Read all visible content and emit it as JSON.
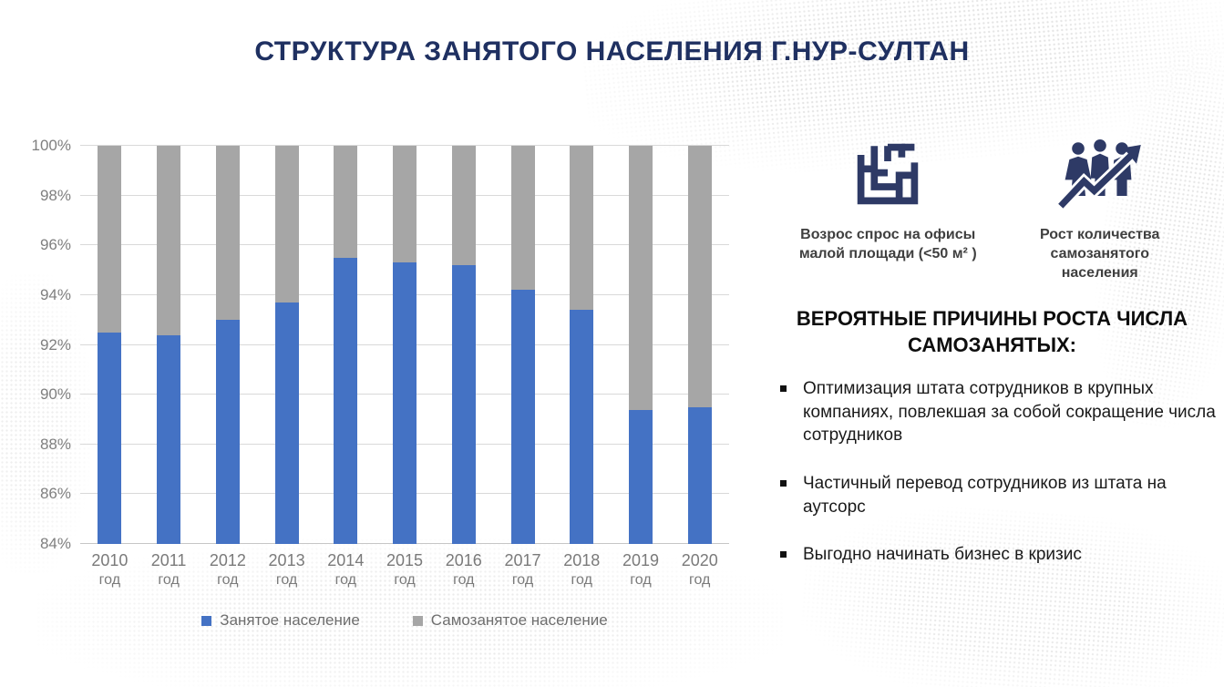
{
  "slide": {
    "title": "СТРУКТУРА ЗАНЯТОГО НАСЕЛЕНИЯ Г.НУР-СУЛТАН"
  },
  "chart_data": {
    "type": "bar",
    "stacked": true,
    "categories": [
      "2010",
      "2011",
      "2012",
      "2013",
      "2014",
      "2015",
      "2016",
      "2017",
      "2018",
      "2019",
      "2020"
    ],
    "category_suffix": "год",
    "series": [
      {
        "name": "Занятое население",
        "color": "#4472C4",
        "values": [
          92.5,
          92.4,
          93.0,
          93.7,
          95.5,
          95.3,
          95.2,
          94.2,
          93.4,
          89.4,
          89.5
        ]
      },
      {
        "name": "Самозанятое население",
        "color": "#A6A6A6",
        "values": [
          7.5,
          7.6,
          7.0,
          6.3,
          4.5,
          4.7,
          4.8,
          5.8,
          6.6,
          10.6,
          10.5
        ]
      }
    ],
    "title": "",
    "xlabel": "",
    "ylabel": "",
    "ylim": [
      84,
      100
    ],
    "ytick_step": 2,
    "ytick_format": "percent",
    "grid": true,
    "legend_position": "bottom"
  },
  "right_panel": {
    "highlights": [
      {
        "icon": "office-maze-icon",
        "caption": "Возрос спрос на офисы малой площади (<50 м² )"
      },
      {
        "icon": "people-growth-icon",
        "caption": "Рост количества самозанятого населения"
      }
    ],
    "reasons_heading": "ВЕРОЯТНЫЕ ПРИЧИНЫ РОСТА ЧИСЛА САМОЗАНЯТЫХ:",
    "reasons": [
      "Оптимизация штата сотрудников в крупных компаниях, повлекшая за собой сокращение числа сотрудников",
      "Частичный перевод сотрудников из штата на аутсорс",
      "Выгодно начинать бизнес в кризис"
    ]
  },
  "colors": {
    "title_navy": "#1F3061",
    "icon_navy": "#2E3A66",
    "bar_blue": "#4472C4",
    "bar_gray": "#A6A6A6",
    "gridline": "#D9D9D9",
    "axis_text": "#7F7F7F",
    "legend_text": "#6E6E6E"
  }
}
